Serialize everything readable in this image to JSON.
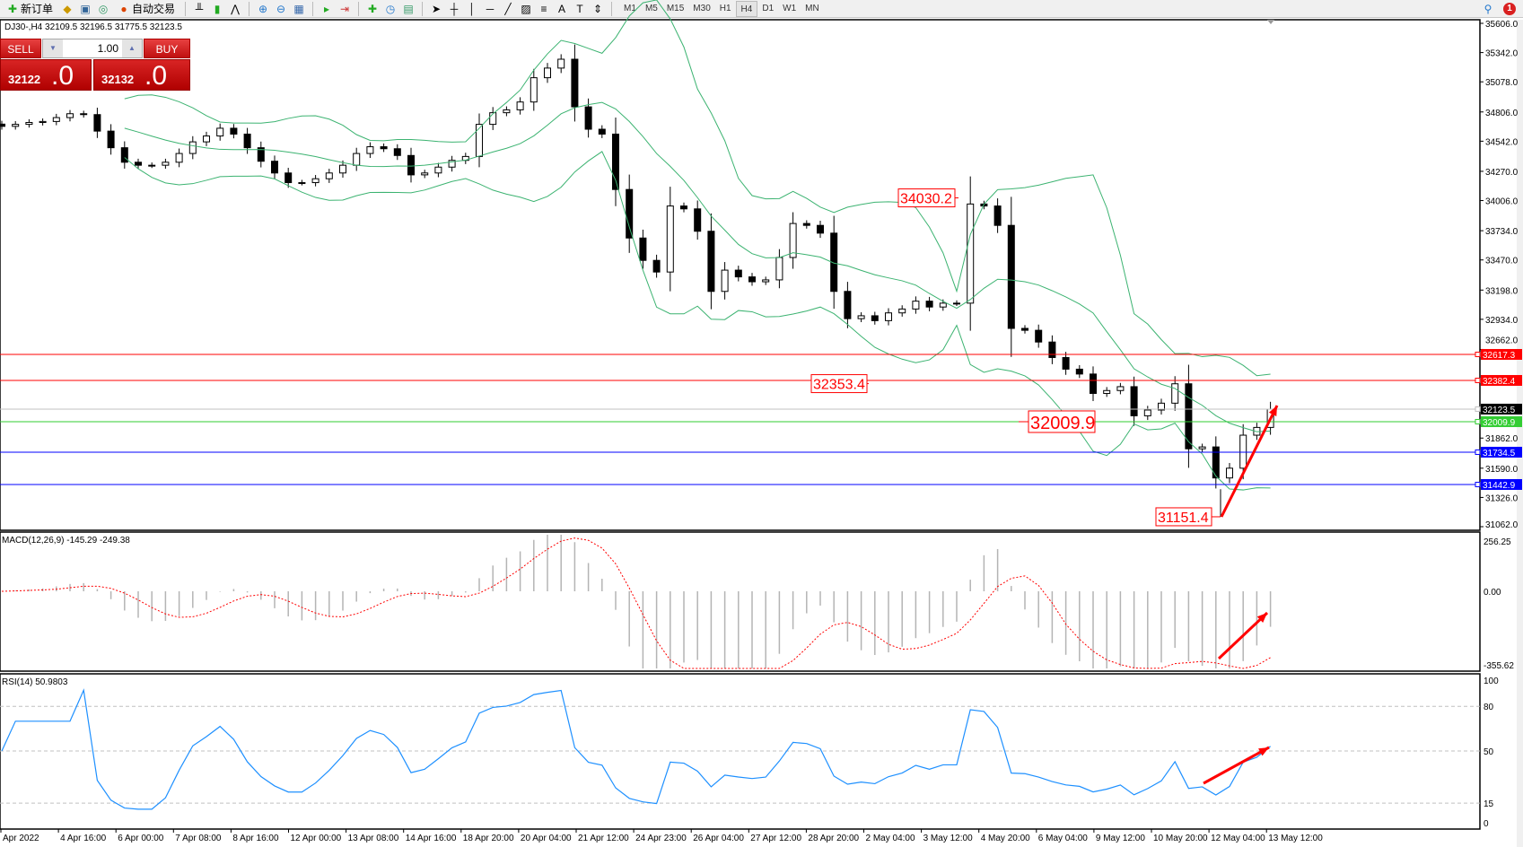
{
  "toolbar": {
    "new_order": "新订单",
    "auto_trade": "自动交易",
    "timeframes": [
      "M1",
      "M5",
      "M15",
      "M30",
      "H1",
      "H4",
      "D1",
      "W1",
      "MN"
    ],
    "active_timeframe": "H4",
    "notifications": "1"
  },
  "chart": {
    "symbol_info": "DJ30-,H4  32109.5 32196.5 31775.5 32123.5",
    "one_click": {
      "sell": "SELL",
      "buy": "BUY",
      "lots": "1.00",
      "bid_main": "32122",
      "bid_frac": ".0",
      "ask_main": "32132",
      "ask_frac": ".0"
    },
    "price_ticks": [
      "35606.0",
      "35342.0",
      "35078.0",
      "34806.0",
      "34542.0",
      "34270.0",
      "34006.0",
      "33734.0",
      "33470.0",
      "33198.0",
      "32934.0",
      "32662.0",
      "31862.0",
      "31590.0",
      "31326.0",
      "31062.0"
    ],
    "levels": [
      {
        "price": 32617.3,
        "label": "32617.3",
        "color": "#ff0000"
      },
      {
        "price": 32382.4,
        "label": "32382.4",
        "color": "#ff0000"
      },
      {
        "price": 32123.5,
        "label": "32123.5",
        "color": "#000000",
        "line": "#c0c0c0"
      },
      {
        "price": 32009.9,
        "label": "32009.9",
        "color": "#32cd32"
      },
      {
        "price": 31734.5,
        "label": "31734.5",
        "color": "#0000ff"
      },
      {
        "price": 31442.9,
        "label": "31442.9",
        "color": "#0000ff"
      }
    ],
    "annotations": [
      {
        "label": "34030.2",
        "price": 34030.2
      },
      {
        "label": "32353.4",
        "price": 32353.4
      },
      {
        "label": "32009.9",
        "price": 32009.9
      },
      {
        "label": "31151.4",
        "price": 31151.4
      }
    ],
    "closes": [
      34676,
      34694,
      34711,
      34720,
      34755,
      34790,
      34782,
      34633,
      34483,
      34352,
      34325,
      34325,
      34352,
      34431,
      34536,
      34589,
      34659,
      34606,
      34483,
      34361,
      34255,
      34168,
      34168,
      34203,
      34255,
      34325,
      34431,
      34492,
      34474,
      34413,
      34238,
      34255,
      34308,
      34369,
      34404,
      34694,
      34799,
      34825,
      34896,
      35115,
      35202,
      35282,
      34852,
      34650,
      34606,
      34106,
      33668,
      33466,
      33361,
      33957,
      33931,
      33729,
      33186,
      33378,
      33317,
      33273,
      33290,
      33492,
      33799,
      33782,
      33712,
      33186,
      32940,
      32966,
      32922,
      32992,
      33027,
      33098,
      33045,
      33080,
      33080,
      33975,
      33957,
      33782,
      32852,
      32835,
      32729,
      32589,
      32484,
      32440,
      32265,
      32291,
      32326,
      32063,
      32115,
      32177,
      32352,
      31765,
      31782,
      31502,
      31590,
      31888,
      31958,
      32123
    ],
    "time_labels": [
      "Apr 2022",
      "4 Apr 16:00",
      "6 Apr 00:00",
      "7 Apr 08:00",
      "8 Apr 16:00",
      "12 Apr 00:00",
      "13 Apr 08:00",
      "14 Apr 16:00",
      "18 Apr 20:00",
      "20 Apr 04:00",
      "21 Apr 12:00",
      "24 Apr 23:00",
      "26 Apr 04:00",
      "27 Apr 12:00",
      "28 Apr 20:00",
      "2 May 04:00",
      "3 May 12:00",
      "4 May 20:00",
      "6 May 04:00",
      "9 May 12:00",
      "10 May 20:00",
      "12 May 04:00",
      "13 May 12:00"
    ]
  },
  "macd": {
    "title": "MACD(12,26,9) -145.29 -249.38",
    "ticks": [
      "256.25",
      "0.00",
      "-355.62"
    ]
  },
  "rsi": {
    "title": "RSI(14) 50.9803",
    "ticks": [
      "100",
      "80",
      "50",
      "15",
      "0"
    ]
  },
  "colors": {
    "bands": "#3cb371",
    "macd_hist": "#b4b4b4",
    "macd_signal": "#ff0000",
    "rsi_line": "#1e90ff",
    "arrow": "#ff0000"
  }
}
